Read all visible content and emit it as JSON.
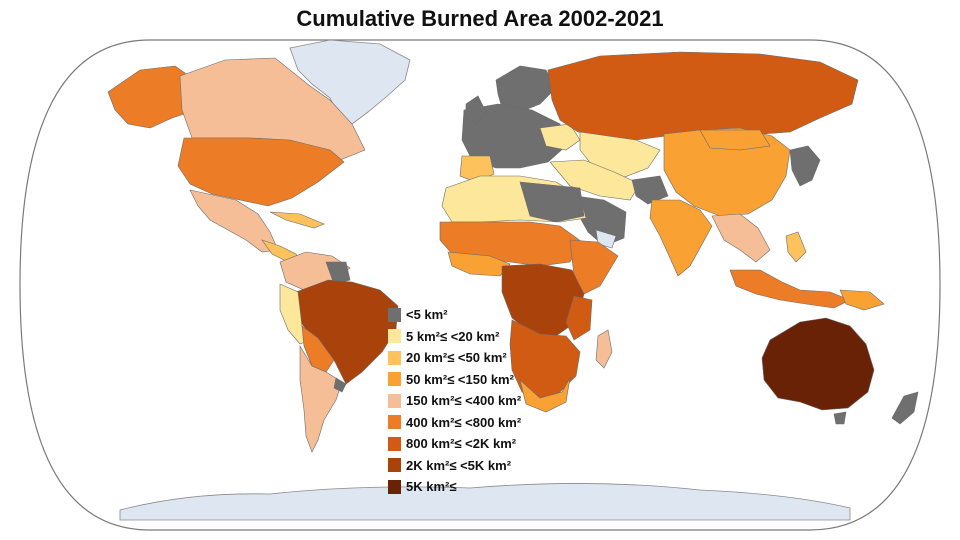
{
  "title": "Cumulative Burned Area 2002-2021",
  "map": {
    "ocean_color": "#ffffff",
    "ice_color": "#dde6f1",
    "border_color": "#6b6b6b"
  },
  "legend": {
    "items": [
      {
        "label": "<5 km²",
        "color": "#6f6f6f"
      },
      {
        "label": "5 km²≤ <20 km²",
        "color": "#fde79a"
      },
      {
        "label": "20 km²≤ <50 km²",
        "color": "#fdc25c"
      },
      {
        "label": "50 km²≤ <150 km²",
        "color": "#f9a133"
      },
      {
        "label": "150 km²≤ <400 km²",
        "color": "#f6be96"
      },
      {
        "label": "400 km²≤ <800 km²",
        "color": "#ec7c26"
      },
      {
        "label": "800 km²≤ <2K km²",
        "color": "#d25b13"
      },
      {
        "label": "2K km²≤ <5K km²",
        "color": "#a9420b"
      },
      {
        "label": "5K km²≤",
        "color": "#6a2206"
      }
    ]
  }
}
